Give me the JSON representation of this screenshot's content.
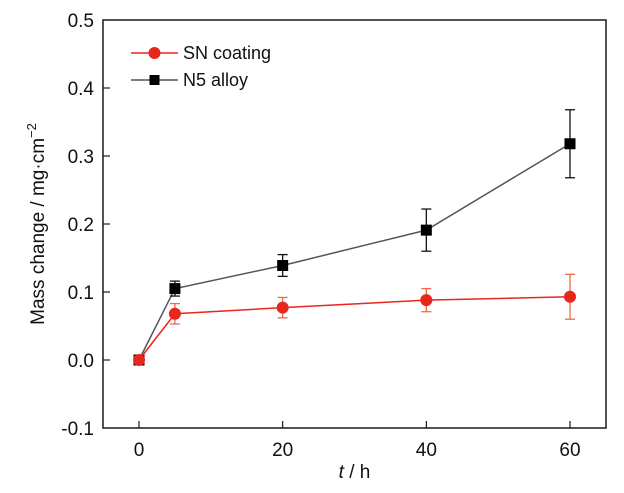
{
  "chart_data": {
    "type": "line",
    "title": "",
    "xlabel_italic": "t",
    "xlabel_rest": " / h",
    "ylabel": "Mass change / mg·cm",
    "ylabel_superscript": "−2",
    "xlim": [
      -5,
      65
    ],
    "ylim": [
      -0.1,
      0.5
    ],
    "xticks": [
      0,
      20,
      40,
      60
    ],
    "xtick_labels": [
      "0",
      "20",
      "40",
      "60"
    ],
    "yticks": [
      -0.1,
      0.0,
      0.1,
      0.2,
      0.3,
      0.4,
      0.5
    ],
    "ytick_labels": [
      "-0.1",
      "0.0",
      "0.1",
      "0.2",
      "0.3",
      "0.4",
      "0.5"
    ],
    "grid": false,
    "legend_position": "top-left",
    "series": [
      {
        "name": "SN coating",
        "color": "#e8261b",
        "error_color": "#ee6a48",
        "marker": "circle",
        "x": [
          0,
          5,
          20,
          40,
          60
        ],
        "y": [
          0.0,
          0.068,
          0.077,
          0.088,
          0.093
        ],
        "yerr": [
          0.0,
          0.015,
          0.015,
          0.017,
          0.033
        ]
      },
      {
        "name": "N5 alloy",
        "color": "#000000",
        "line_color": "#555555",
        "error_color": "#111111",
        "marker": "square",
        "x": [
          0,
          5,
          20,
          40,
          60
        ],
        "y": [
          0.0,
          0.105,
          0.139,
          0.191,
          0.318
        ],
        "yerr": [
          0.0,
          0.011,
          0.016,
          0.031,
          0.05
        ]
      }
    ]
  }
}
